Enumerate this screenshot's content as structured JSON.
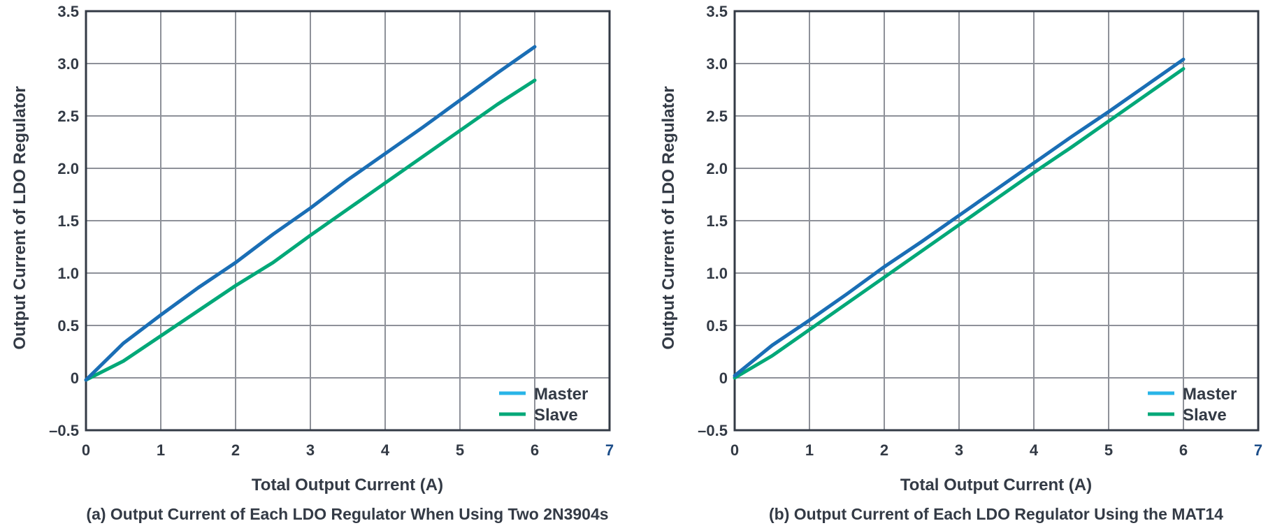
{
  "colors": {
    "master_line": "#1a6eb5",
    "master_legend": "#29b5e8",
    "slave": "#00a878",
    "grid": "#8e9199",
    "frame": "#333a45",
    "text": "#333a45",
    "tick_7": "#1d4e89"
  },
  "chart_data": [
    {
      "type": "line",
      "title": "(a) Output Current of Each LDO Regulator When Using Two 2N3904s",
      "xlabel": "Total Output Current (A)",
      "ylabel": "Output Current of LDO Regulator",
      "xlim": [
        0,
        7
      ],
      "ylim": [
        -0.5,
        3.5
      ],
      "xticks": [
        "0",
        "1",
        "2",
        "3",
        "4",
        "5",
        "6",
        "7"
      ],
      "yticks": [
        "3.5",
        "3.0",
        "2.5",
        "2.0",
        "1.5",
        "1.0",
        "0.5",
        "0",
        "–0.5"
      ],
      "grid": true,
      "legend_position": "bottom-right",
      "legend": [
        "Master",
        "Slave"
      ],
      "series": [
        {
          "name": "Master",
          "x": [
            0,
            0.5,
            1,
            1.5,
            2,
            2.5,
            3,
            3.5,
            4,
            4.5,
            5,
            5.5,
            6
          ],
          "values": [
            -0.02,
            0.33,
            0.6,
            0.86,
            1.1,
            1.37,
            1.62,
            1.89,
            2.14,
            2.39,
            2.65,
            2.91,
            3.16
          ]
        },
        {
          "name": "Slave",
          "x": [
            0,
            0.5,
            1,
            1.5,
            2,
            2.5,
            3,
            3.5,
            4,
            4.5,
            5,
            5.5,
            6
          ],
          "values": [
            -0.02,
            0.16,
            0.4,
            0.64,
            0.88,
            1.1,
            1.36,
            1.61,
            1.86,
            2.11,
            2.36,
            2.61,
            2.84
          ]
        }
      ]
    },
    {
      "type": "line",
      "title": "(b) Output Current of Each LDO Regulator Using the MAT14",
      "xlabel": "Total Output Current (A)",
      "ylabel": "Output Current of LDO Regulator",
      "xlim": [
        0,
        7
      ],
      "ylim": [
        -0.5,
        3.5
      ],
      "xticks": [
        "0",
        "1",
        "2",
        "3",
        "4",
        "5",
        "6",
        "7"
      ],
      "yticks": [
        "3.5",
        "3.0",
        "2.5",
        "2.0",
        "1.5",
        "1.0",
        "0.5",
        "0",
        "–0.5"
      ],
      "grid": true,
      "legend_position": "bottom-right",
      "legend": [
        "Master",
        "Slave"
      ],
      "series": [
        {
          "name": "Master",
          "x": [
            0,
            0.5,
            1,
            1.5,
            2,
            2.5,
            3,
            3.5,
            4,
            4.5,
            5,
            5.5,
            6
          ],
          "values": [
            0.02,
            0.31,
            0.55,
            0.8,
            1.06,
            1.3,
            1.55,
            1.8,
            2.05,
            2.3,
            2.54,
            2.79,
            3.04
          ]
        },
        {
          "name": "Slave",
          "x": [
            0,
            0.5,
            1,
            1.5,
            2,
            2.5,
            3,
            3.5,
            4,
            4.5,
            5,
            5.5,
            6
          ],
          "values": [
            0.0,
            0.21,
            0.46,
            0.71,
            0.96,
            1.21,
            1.46,
            1.71,
            1.96,
            2.2,
            2.45,
            2.7,
            2.95
          ]
        }
      ]
    }
  ]
}
